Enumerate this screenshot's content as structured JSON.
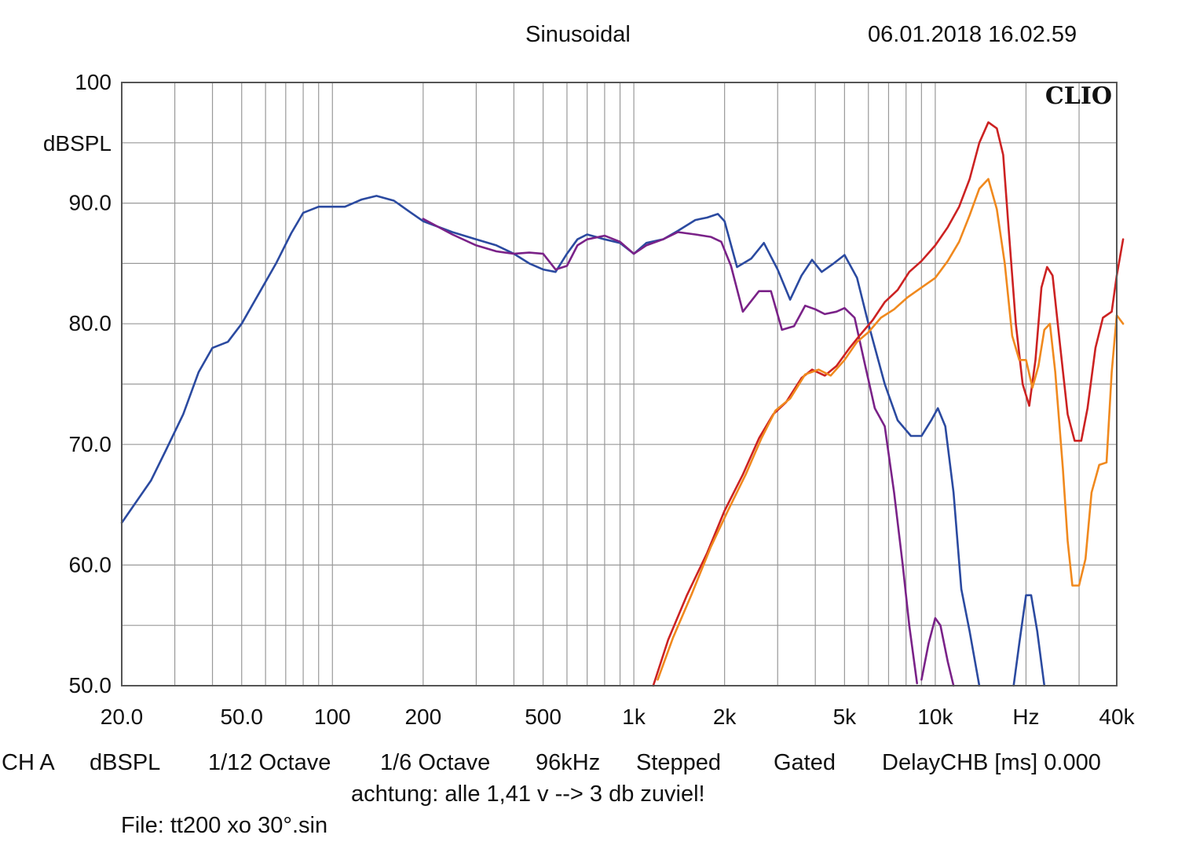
{
  "header": {
    "title": "Sinusoidal",
    "timestamp": "06.01.2018 16.02.59"
  },
  "brand": "CLIO",
  "footer": {
    "line1": [
      "CH A",
      "dBSPL",
      "1/12 Octave",
      "1/6 Octave",
      "96kHz",
      "Stepped",
      "Gated",
      "DelayCHB [ms] 0.000"
    ],
    "line2": "achtung: alle 1,41 v --> 3 db zuviel!",
    "line3": "File: tt200 xo 30°.sin"
  },
  "chart_data": {
    "type": "line",
    "x_scale": "log",
    "xlim": [
      20,
      40000
    ],
    "ylim": [
      50,
      100
    ],
    "ylabel": "dBSPL",
    "xlabel": "Hz",
    "grid": true,
    "colors": {
      "plot_border": "#555555",
      "grid": "#999999"
    },
    "y_ticks": [
      {
        "value": 100,
        "label": "100"
      },
      {
        "value": 90,
        "label": "90.0"
      },
      {
        "value": 80,
        "label": "80.0"
      },
      {
        "value": 70,
        "label": "70.0"
      },
      {
        "value": 60,
        "label": "60.0"
      },
      {
        "value": 50,
        "label": "50.0"
      }
    ],
    "x_ticks": [
      {
        "value": 20,
        "label": "20.0"
      },
      {
        "value": 50,
        "label": "50.0"
      },
      {
        "value": 100,
        "label": "100"
      },
      {
        "value": 200,
        "label": "200"
      },
      {
        "value": 500,
        "label": "500"
      },
      {
        "value": 1000,
        "label": "1k"
      },
      {
        "value": 2000,
        "label": "2k"
      },
      {
        "value": 5000,
        "label": "5k"
      },
      {
        "value": 10000,
        "label": "10k"
      },
      {
        "value": 20000,
        "label": "Hz"
      },
      {
        "value": 40000,
        "label": "40k"
      }
    ],
    "series": [
      {
        "color": "#2b4aa0",
        "points": [
          [
            20,
            63.5
          ],
          [
            22,
            65
          ],
          [
            25,
            67
          ],
          [
            28,
            69.5
          ],
          [
            32,
            72.5
          ],
          [
            36,
            76
          ],
          [
            40,
            78
          ],
          [
            45,
            78.5
          ],
          [
            50,
            80
          ],
          [
            57,
            82.5
          ],
          [
            65,
            85
          ],
          [
            73,
            87.5
          ],
          [
            80,
            89.2
          ],
          [
            90,
            89.7
          ],
          [
            100,
            89.7
          ],
          [
            110,
            89.7
          ],
          [
            125,
            90.3
          ],
          [
            140,
            90.6
          ],
          [
            160,
            90.2
          ],
          [
            180,
            89.3
          ],
          [
            200,
            88.5
          ],
          [
            250,
            87.6
          ],
          [
            300,
            87
          ],
          [
            350,
            86.5
          ],
          [
            400,
            85.8
          ],
          [
            450,
            85
          ],
          [
            500,
            84.5
          ],
          [
            550,
            84.3
          ],
          [
            600,
            85.8
          ],
          [
            650,
            87
          ],
          [
            700,
            87.4
          ],
          [
            800,
            87
          ],
          [
            900,
            86.7
          ],
          [
            1000,
            85.8
          ],
          [
            1100,
            86.7
          ],
          [
            1250,
            87
          ],
          [
            1400,
            87.7
          ],
          [
            1600,
            88.6
          ],
          [
            1750,
            88.8
          ],
          [
            1900,
            89.1
          ],
          [
            2000,
            88.5
          ],
          [
            2200,
            84.7
          ],
          [
            2450,
            85.4
          ],
          [
            2700,
            86.7
          ],
          [
            3000,
            84.5
          ],
          [
            3300,
            82
          ],
          [
            3600,
            84
          ],
          [
            3900,
            85.3
          ],
          [
            4200,
            84.3
          ],
          [
            4600,
            85
          ],
          [
            5000,
            85.7
          ],
          [
            5500,
            83.8
          ],
          [
            6000,
            80
          ],
          [
            6800,
            75
          ],
          [
            7500,
            72
          ],
          [
            8300,
            70.7
          ],
          [
            9000,
            70.7
          ],
          [
            9700,
            72
          ],
          [
            10200,
            73
          ],
          [
            10800,
            71.5
          ],
          [
            11500,
            66
          ],
          [
            12200,
            58
          ],
          [
            13000,
            54.5
          ],
          [
            14000,
            50
          ]
        ]
      },
      {
        "color": "#2b4aa0",
        "points": [
          [
            18200,
            50
          ],
          [
            19000,
            53.5
          ],
          [
            20000,
            57.5
          ],
          [
            20800,
            57.5
          ],
          [
            21800,
            54.5
          ],
          [
            23000,
            50
          ]
        ]
      },
      {
        "color": "#7a2288",
        "points": [
          [
            200,
            88.7
          ],
          [
            250,
            87.4
          ],
          [
            300,
            86.5
          ],
          [
            350,
            86
          ],
          [
            400,
            85.8
          ],
          [
            450,
            85.9
          ],
          [
            500,
            85.8
          ],
          [
            550,
            84.5
          ],
          [
            600,
            84.8
          ],
          [
            650,
            86.5
          ],
          [
            700,
            87
          ],
          [
            800,
            87.3
          ],
          [
            900,
            86.8
          ],
          [
            1000,
            85.8
          ],
          [
            1100,
            86.5
          ],
          [
            1250,
            87
          ],
          [
            1400,
            87.6
          ],
          [
            1600,
            87.4
          ],
          [
            1800,
            87.2
          ],
          [
            1950,
            86.8
          ],
          [
            2100,
            84.8
          ],
          [
            2300,
            81
          ],
          [
            2600,
            82.7
          ],
          [
            2850,
            82.7
          ],
          [
            3100,
            79.5
          ],
          [
            3400,
            79.8
          ],
          [
            3700,
            81.5
          ],
          [
            4000,
            81.2
          ],
          [
            4300,
            80.8
          ],
          [
            4700,
            81
          ],
          [
            5000,
            81.3
          ],
          [
            5400,
            80.5
          ],
          [
            5800,
            77
          ],
          [
            6300,
            73
          ],
          [
            6800,
            71.5
          ],
          [
            7300,
            66
          ],
          [
            7800,
            60
          ],
          [
            8200,
            55
          ],
          [
            8700,
            50.2
          ]
        ]
      },
      {
        "color": "#7a2288",
        "points": [
          [
            9000,
            50.5
          ],
          [
            9500,
            53.5
          ],
          [
            10000,
            55.6
          ],
          [
            10400,
            55
          ],
          [
            11000,
            52
          ],
          [
            11500,
            50
          ]
        ]
      },
      {
        "color": "#cc2222",
        "points": [
          [
            1160,
            50
          ],
          [
            1300,
            53.8
          ],
          [
            1500,
            57.5
          ],
          [
            1750,
            61
          ],
          [
            2000,
            64.5
          ],
          [
            2300,
            67.5
          ],
          [
            2600,
            70.5
          ],
          [
            2900,
            72.5
          ],
          [
            3200,
            73.5
          ],
          [
            3600,
            75.5
          ],
          [
            3900,
            76.2
          ],
          [
            4300,
            75.7
          ],
          [
            4700,
            76.5
          ],
          [
            5200,
            78
          ],
          [
            5600,
            79
          ],
          [
            6200,
            80.3
          ],
          [
            6800,
            81.8
          ],
          [
            7500,
            82.8
          ],
          [
            8200,
            84.3
          ],
          [
            9000,
            85.2
          ],
          [
            10000,
            86.5
          ],
          [
            11000,
            88
          ],
          [
            12000,
            89.7
          ],
          [
            13000,
            92
          ],
          [
            14000,
            95
          ],
          [
            15000,
            96.7
          ],
          [
            16000,
            96.2
          ],
          [
            16800,
            94
          ],
          [
            17500,
            88
          ],
          [
            18500,
            80
          ],
          [
            19500,
            75
          ],
          [
            20500,
            73.2
          ],
          [
            21500,
            77
          ],
          [
            22500,
            83
          ],
          [
            23500,
            84.7
          ],
          [
            24500,
            84
          ],
          [
            26000,
            78
          ],
          [
            27500,
            72.5
          ],
          [
            29000,
            70.3
          ],
          [
            30500,
            70.3
          ],
          [
            32000,
            73
          ],
          [
            34000,
            78
          ],
          [
            36000,
            80.5
          ],
          [
            38500,
            81
          ],
          [
            40000,
            84
          ],
          [
            42000,
            87
          ]
        ]
      },
      {
        "color": "#f0891e",
        "points": [
          [
            1200,
            50.5
          ],
          [
            1350,
            54
          ],
          [
            1550,
            57.5
          ],
          [
            1800,
            61.5
          ],
          [
            2050,
            64.5
          ],
          [
            2350,
            67.5
          ],
          [
            2650,
            70.5
          ],
          [
            2950,
            72.8
          ],
          [
            3300,
            73.8
          ],
          [
            3700,
            75.8
          ],
          [
            4100,
            76.2
          ],
          [
            4500,
            75.7
          ],
          [
            5000,
            77
          ],
          [
            5500,
            78.5
          ],
          [
            6000,
            79.3
          ],
          [
            6600,
            80.5
          ],
          [
            7300,
            81.2
          ],
          [
            8100,
            82.2
          ],
          [
            9000,
            83
          ],
          [
            10000,
            83.8
          ],
          [
            11000,
            85.2
          ],
          [
            12000,
            86.8
          ],
          [
            13000,
            89
          ],
          [
            14000,
            91.2
          ],
          [
            15000,
            92
          ],
          [
            16000,
            89.5
          ],
          [
            17000,
            85
          ],
          [
            18000,
            79
          ],
          [
            19000,
            77
          ],
          [
            20000,
            77
          ],
          [
            21000,
            74.7
          ],
          [
            22000,
            76.5
          ],
          [
            23000,
            79.5
          ],
          [
            24000,
            80
          ],
          [
            25000,
            76
          ],
          [
            26500,
            68
          ],
          [
            27500,
            62
          ],
          [
            28500,
            58.3
          ],
          [
            30000,
            58.3
          ],
          [
            31500,
            60.5
          ],
          [
            33000,
            66
          ],
          [
            35000,
            68.3
          ],
          [
            37000,
            68.5
          ],
          [
            38500,
            76
          ],
          [
            40000,
            80.7
          ],
          [
            42000,
            80
          ]
        ]
      }
    ]
  }
}
